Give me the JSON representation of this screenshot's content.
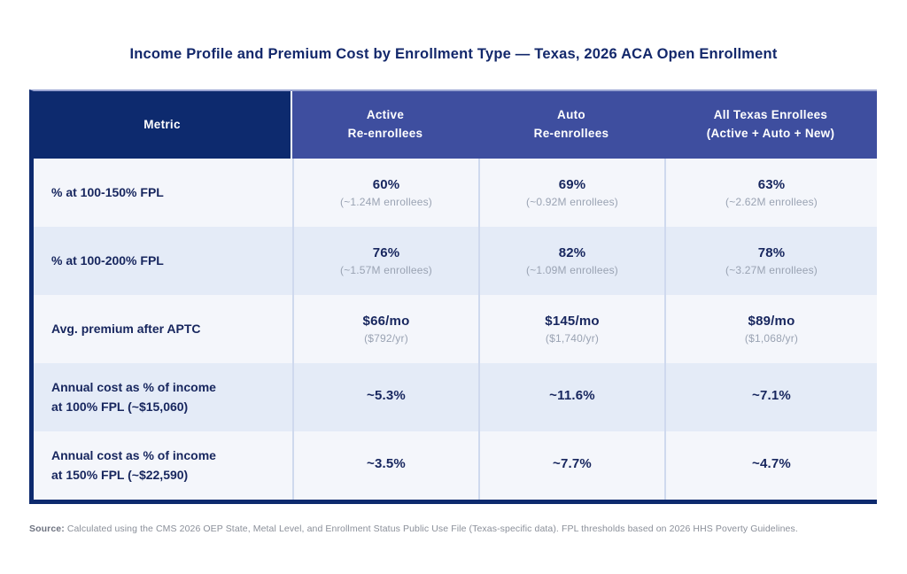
{
  "page": {
    "title": "Income Profile and Premium Cost by Enrollment Type — Texas, 2026 ACA Open Enrollment"
  },
  "footer": {
    "source_label": "Source:",
    "source_text": " Calculated using the CMS 2026 OEP State, Metal Level, and Enrollment Status Public Use File (Texas-specific data). FPL thresholds based on 2026 HHS Poverty Guidelines."
  },
  "colors": {
    "navy": "#0d2a6e",
    "indigo_header": "#3e4e9f",
    "title_text": "#13286b",
    "row_light": "#f4f6fb",
    "row_shaded": "#e4ebf7",
    "column_divider": "#cfd9ee",
    "value_text": "#17265e",
    "sub_text": "#9aa3b3",
    "footer_text": "#8a8f99"
  },
  "chart_data": {
    "type": "table",
    "title": "Income Profile and Premium Cost by Enrollment Type — Texas, 2026 ACA Open Enrollment",
    "columns": [
      "Metric",
      "Active\nRe-enrollees",
      "Auto\nRe-enrollees",
      "All Texas Enrollees\n(Active + Auto + New)"
    ],
    "rows": [
      {
        "metric": "% at 100-150% FPL",
        "cells": [
          {
            "value": "60%",
            "sub": "(~1.24M enrollees)"
          },
          {
            "value": "69%",
            "sub": "(~0.92M enrollees)"
          },
          {
            "value": "63%",
            "sub": "(~2.62M enrollees)"
          }
        ]
      },
      {
        "metric": "% at 100-200% FPL",
        "cells": [
          {
            "value": "76%",
            "sub": "(~1.57M enrollees)"
          },
          {
            "value": "82%",
            "sub": "(~1.09M enrollees)"
          },
          {
            "value": "78%",
            "sub": "(~3.27M enrollees)"
          }
        ]
      },
      {
        "metric": "Avg. premium after APTC",
        "cells": [
          {
            "value": "$66/mo",
            "sub": "($792/yr)"
          },
          {
            "value": "$145/mo",
            "sub": "($1,740/yr)"
          },
          {
            "value": "$89/mo",
            "sub": "($1,068/yr)"
          }
        ]
      },
      {
        "metric": "Annual cost as % of income\nat 100% FPL (~$15,060)",
        "cells": [
          {
            "value": "~5.3%",
            "sub": ""
          },
          {
            "value": "~11.6%",
            "sub": ""
          },
          {
            "value": "~7.1%",
            "sub": ""
          }
        ]
      },
      {
        "metric": "Annual cost as % of income\nat 150% FPL (~$22,590)",
        "cells": [
          {
            "value": "~3.5%",
            "sub": ""
          },
          {
            "value": "~7.7%",
            "sub": ""
          },
          {
            "value": "~4.7%",
            "sub": ""
          }
        ]
      }
    ]
  }
}
